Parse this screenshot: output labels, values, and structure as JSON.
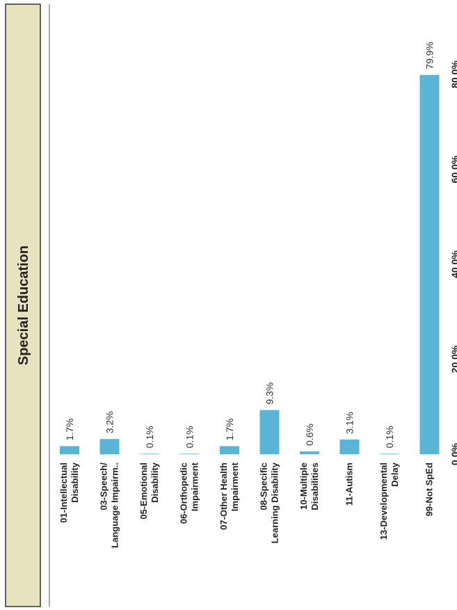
{
  "chart_data": {
    "type": "bar",
    "orientation": "horizontal",
    "rotated": "90deg-clockwise-display",
    "title": "Special Education",
    "categories": [
      [
        "01-Intellectual",
        "Disability"
      ],
      [
        "03-Speech/",
        "Language Impairm.."
      ],
      [
        "05-Emotional",
        "Disability"
      ],
      [
        "06-Orthopedic",
        "Impairment"
      ],
      [
        "07-Other Health",
        "Impairment"
      ],
      [
        "08-Specific",
        "Learning Disability"
      ],
      [
        "10-Multiple",
        "Disabilities"
      ],
      [
        "11-Autism"
      ],
      [
        "13-Developmental",
        "Delay"
      ],
      [
        "99-Not SpEd"
      ]
    ],
    "values": [
      1.7,
      3.2,
      0.1,
      0.1,
      1.7,
      9.3,
      0.6,
      3.1,
      0.1,
      79.9
    ],
    "value_labels": [
      "1.7%",
      "3.2%",
      "0.1%",
      "0.1%",
      "1.7%",
      "9.3%",
      "0.6%",
      "3.1%",
      "0.1%",
      "79.9%"
    ],
    "xticks": [
      0,
      20,
      40,
      60,
      80
    ],
    "xtick_labels": [
      "0.0%",
      "20.0%",
      "40.0%",
      "60.0%",
      "80.0%"
    ],
    "xlim": [
      0,
      95
    ],
    "grid": false,
    "colors": {
      "bar": "#5BB4D6",
      "title_band": "#E7E3BE",
      "frame": "#333333",
      "axis": "#555555"
    }
  }
}
